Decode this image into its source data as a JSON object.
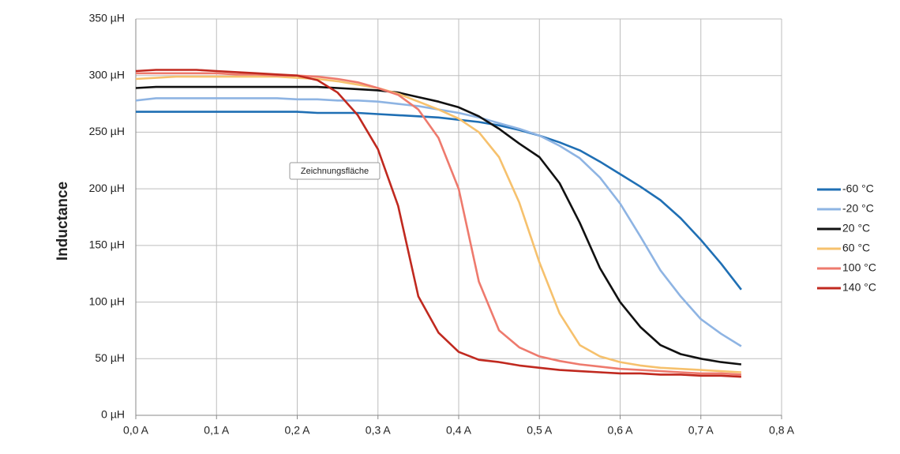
{
  "chart_data": {
    "type": "line",
    "y_label": "Inductance",
    "annotation": "Zeichnungsfläche",
    "x": [
      0,
      0.025,
      0.05,
      0.075,
      0.1,
      0.125,
      0.15,
      0.175,
      0.2,
      0.225,
      0.25,
      0.275,
      0.3,
      0.325,
      0.35,
      0.375,
      0.4,
      0.425,
      0.45,
      0.475,
      0.5,
      0.525,
      0.55,
      0.575,
      0.6,
      0.625,
      0.65,
      0.675,
      0.7,
      0.725,
      0.75
    ],
    "series": [
      {
        "name": "-60 °C",
        "color": "#1f6fb4",
        "values": [
          268,
          268,
          268,
          268,
          268,
          268,
          268,
          268,
          268,
          267,
          267,
          267,
          266,
          265,
          264,
          263,
          261,
          259,
          256,
          252,
          247,
          241,
          234,
          224,
          213,
          202,
          190,
          174,
          155,
          134,
          111
        ]
      },
      {
        "name": "-20 °C",
        "color": "#8eb4e3",
        "values": [
          278,
          280,
          280,
          280,
          280,
          280,
          280,
          280,
          279,
          279,
          278,
          278,
          277,
          275,
          273,
          270,
          267,
          263,
          258,
          253,
          247,
          238,
          227,
          210,
          187,
          158,
          128,
          105,
          85,
          72,
          61
        ]
      },
      {
        "name": "20 °C",
        "color": "#111111",
        "values": [
          289,
          290,
          290,
          290,
          290,
          290,
          290,
          290,
          290,
          290,
          289,
          288,
          287,
          285,
          281,
          277,
          272,
          264,
          253,
          240,
          228,
          205,
          170,
          130,
          100,
          78,
          62,
          54,
          50,
          47,
          45
        ]
      },
      {
        "name": "60 °C",
        "color": "#f6c16d",
        "values": [
          297,
          298,
          299,
          299,
          299,
          299,
          299,
          299,
          298,
          297,
          295,
          292,
          289,
          284,
          277,
          270,
          262,
          250,
          228,
          188,
          135,
          90,
          62,
          52,
          47,
          44,
          42,
          41,
          40,
          39,
          38
        ]
      },
      {
        "name": "100 °C",
        "color": "#ee7a6d",
        "values": [
          302,
          302,
          302,
          302,
          302,
          301,
          301,
          300,
          300,
          299,
          297,
          294,
          289,
          283,
          270,
          245,
          200,
          118,
          75,
          60,
          52,
          48,
          45,
          43,
          41,
          40,
          39,
          38,
          37,
          37,
          36
        ]
      },
      {
        "name": "140 °C",
        "color": "#c0291f",
        "values": [
          304,
          305,
          305,
          305,
          304,
          303,
          302,
          301,
          300,
          296,
          285,
          265,
          235,
          185,
          105,
          73,
          56,
          49,
          47,
          44,
          42,
          40,
          39,
          38,
          37,
          37,
          36,
          36,
          35,
          35,
          34
        ]
      }
    ],
    "xlim": [
      0,
      0.8
    ],
    "xticks": [
      {
        "value": 0,
        "label": "0,0 A"
      },
      {
        "value": 0.1,
        "label": "0,1 A"
      },
      {
        "value": 0.2,
        "label": "0,2 A"
      },
      {
        "value": 0.3,
        "label": "0,3 A"
      },
      {
        "value": 0.4,
        "label": "0,4 A"
      },
      {
        "value": 0.5,
        "label": "0,5 A"
      },
      {
        "value": 0.6,
        "label": "0,6 A"
      },
      {
        "value": 0.7,
        "label": "0,7 A"
      },
      {
        "value": 0.8,
        "label": "0,8 A"
      }
    ],
    "ylim": [
      0,
      350
    ],
    "yticks": [
      {
        "value": 0,
        "label": "0 µH"
      },
      {
        "value": 50,
        "label": "50 µH"
      },
      {
        "value": 100,
        "label": "100 µH"
      },
      {
        "value": 150,
        "label": "150 µH"
      },
      {
        "value": 200,
        "label": "200 µH"
      },
      {
        "value": 250,
        "label": "250 µH"
      },
      {
        "value": 300,
        "label": "300 µH"
      },
      {
        "value": 350,
        "label": "350 µH"
      }
    ],
    "grid": true,
    "legend": "right"
  }
}
